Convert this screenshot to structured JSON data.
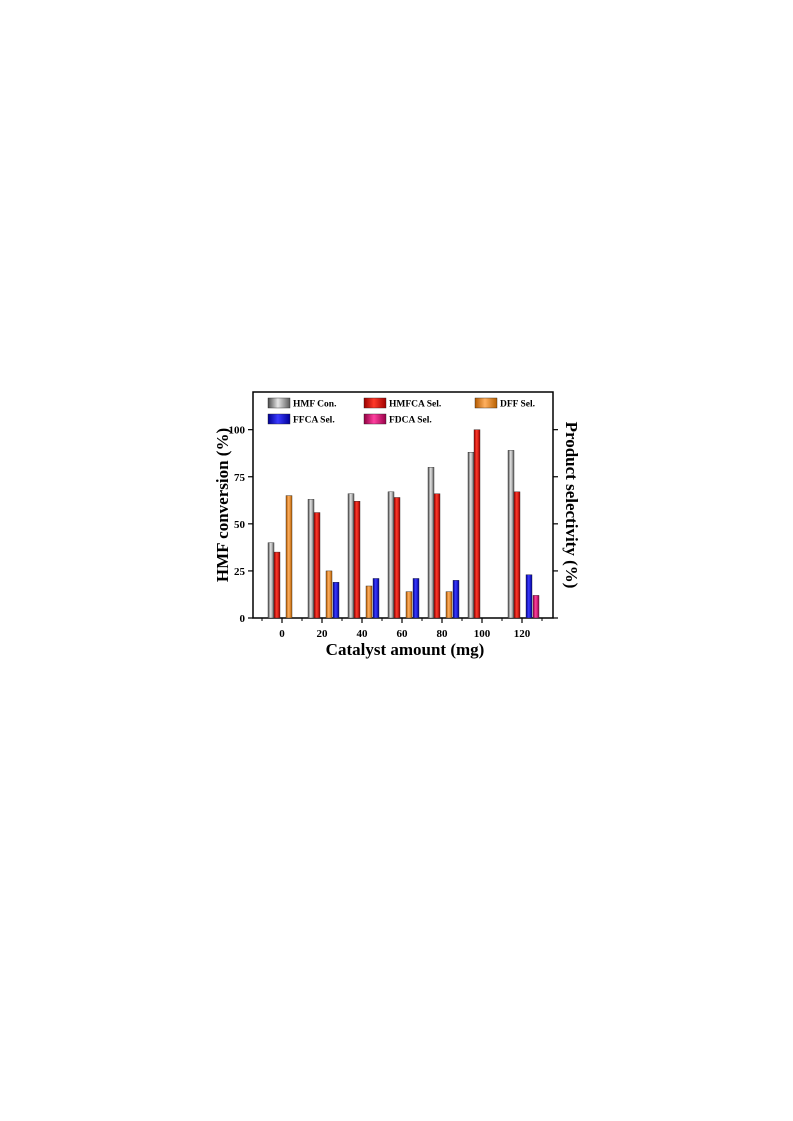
{
  "chart_data": {
    "type": "bar",
    "title": "",
    "xlabel": "Catalyst amount (mg)",
    "ylabel": "HMF conversion (%)",
    "ylabel_right": "Product selectivity (%)",
    "categories": [
      "0",
      "20",
      "40",
      "60",
      "80",
      "100",
      "120"
    ],
    "yticks": [
      "0",
      "25",
      "50",
      "75",
      "100"
    ],
    "ylim": [
      0,
      120
    ],
    "legend_position": "top",
    "grid": false,
    "series": [
      {
        "name": "HMF Con.",
        "color": "#808080",
        "values": [
          40,
          63,
          66,
          67,
          80,
          88,
          89
        ]
      },
      {
        "name": "HMFCA Sel.",
        "color": "#e01010",
        "values": [
          35,
          56,
          62,
          64,
          66,
          100,
          67
        ]
      },
      {
        "name": "DFF Sel.",
        "color": "#e8821e",
        "values": [
          65,
          25,
          17,
          14,
          14,
          0,
          0
        ]
      },
      {
        "name": "FFCA Sel.",
        "color": "#1010d0",
        "values": [
          0,
          19,
          21,
          21,
          20,
          0,
          23
        ]
      },
      {
        "name": "FDCA Sel.",
        "color": "#d81070",
        "values": [
          0,
          0,
          0,
          0,
          0,
          0,
          12
        ]
      }
    ]
  }
}
